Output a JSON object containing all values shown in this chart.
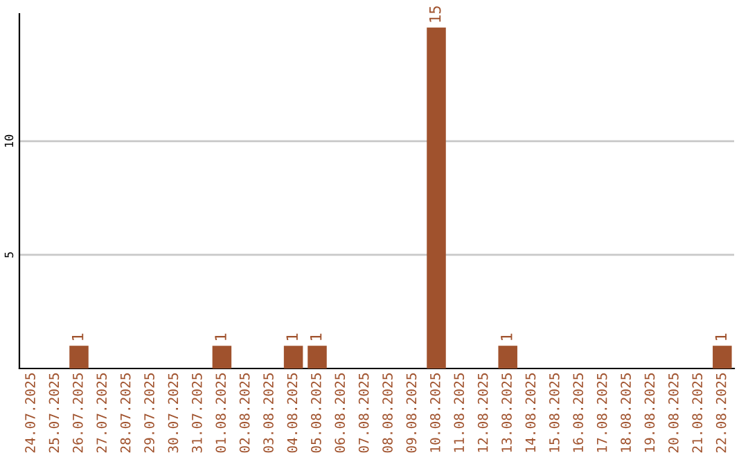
{
  "chart_data": {
    "type": "bar",
    "categories": [
      "24.07.2025",
      "25.07.2025",
      "26.07.2025",
      "27.07.2025",
      "28.07.2025",
      "29.07.2025",
      "30.07.2025",
      "31.07.2025",
      "01.08.2025",
      "02.08.2025",
      "03.08.2025",
      "04.08.2025",
      "05.08.2025",
      "06.08.2025",
      "07.08.2025",
      "08.08.2025",
      "09.08.2025",
      "10.08.2025",
      "11.08.2025",
      "12.08.2025",
      "13.08.2025",
      "14.08.2025",
      "15.08.2025",
      "16.08.2025",
      "17.08.2025",
      "18.08.2025",
      "19.08.2025",
      "20.08.2025",
      "21.08.2025",
      "22.08.2025"
    ],
    "values": [
      0,
      0,
      1,
      0,
      0,
      0,
      0,
      0,
      1,
      0,
      0,
      1,
      1,
      0,
      0,
      0,
      0,
      15,
      0,
      0,
      1,
      0,
      0,
      0,
      0,
      0,
      0,
      0,
      0,
      1
    ],
    "value_labels": [
      null,
      null,
      "1",
      null,
      null,
      null,
      null,
      null,
      "1",
      null,
      null,
      "1",
      "1",
      null,
      null,
      null,
      null,
      "15",
      null,
      null,
      "1",
      null,
      null,
      null,
      null,
      null,
      null,
      null,
      null,
      "1"
    ],
    "color": "#a0522d",
    "ylim": [
      0,
      15.6
    ],
    "yticks": [
      5,
      10
    ],
    "grid": "y"
  }
}
